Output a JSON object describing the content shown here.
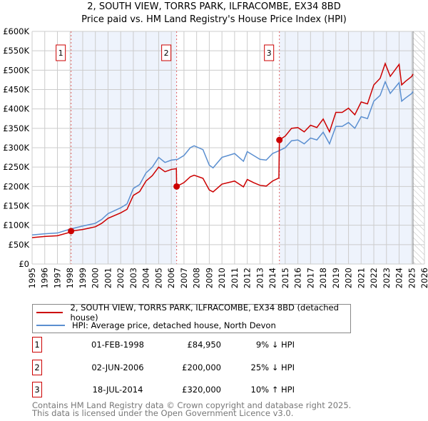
{
  "chart_data": {
    "type": "line",
    "title": "2, SOUTH VIEW, TORRS PARK, ILFRACOMBE, EX34 8BD",
    "subtitle": "Price paid vs. HM Land Registry's House Price Index (HPI)",
    "xlim": [
      1995,
      2026
    ],
    "ylim": [
      0,
      600000
    ],
    "y_ticks": [
      {
        "v": 0,
        "label": "£0"
      },
      {
        "v": 50000,
        "label": "£50K"
      },
      {
        "v": 100000,
        "label": "£100K"
      },
      {
        "v": 150000,
        "label": "£150K"
      },
      {
        "v": 200000,
        "label": "£200K"
      },
      {
        "v": 250000,
        "label": "£250K"
      },
      {
        "v": 300000,
        "label": "£300K"
      },
      {
        "v": 350000,
        "label": "£350K"
      },
      {
        "v": 400000,
        "label": "£400K"
      },
      {
        "v": 450000,
        "label": "£450K"
      },
      {
        "v": 500000,
        "label": "£500K"
      },
      {
        "v": 550000,
        "label": "£550K"
      },
      {
        "v": 600000,
        "label": "£600K"
      }
    ],
    "x_ticks": [
      "1995",
      "1996",
      "1997",
      "1998",
      "1999",
      "2000",
      "2001",
      "2002",
      "2003",
      "2004",
      "2005",
      "2006",
      "2007",
      "2008",
      "2009",
      "2010",
      "2011",
      "2012",
      "2013",
      "2014",
      "2015",
      "2016",
      "2017",
      "2018",
      "2019",
      "2020",
      "2021",
      "2022",
      "2023",
      "2024",
      "2025",
      "2026"
    ],
    "grid": true,
    "forecast_start": 2025.1,
    "series": [
      {
        "name": "2, SOUTH VIEW, TORRS PARK, ILFRACOMBE, EX34 8BD (detached house)",
        "color": "#cc0000",
        "x": [
          1995,
          1996,
          1997,
          1998,
          1998.08,
          1999,
          2000,
          2000.5,
          2001,
          2002,
          2002.5,
          2003,
          2003.5,
          2004,
          2004.5,
          2005,
          2005.5,
          2006,
          2006.4,
          2006.42,
          2007,
          2007.5,
          2007.8,
          2008.5,
          2009,
          2009.3,
          2010,
          2010.5,
          2011,
          2011.7,
          2012,
          2012.5,
          2013,
          2013.5,
          2014,
          2014.5,
          2014.54,
          2015,
          2015.5,
          2016,
          2016.5,
          2017,
          2017.5,
          2018,
          2018.5,
          2019,
          2019.5,
          2020,
          2020.5,
          2021,
          2021.5,
          2022,
          2022.5,
          2022.9,
          2023.3,
          2024,
          2024.2,
          2024.5,
          2025,
          2025.1
        ],
        "y": [
          68000,
          71000,
          73000,
          82000,
          84950,
          89000,
          96000,
          105000,
          118000,
          132000,
          141000,
          177000,
          187000,
          214000,
          228000,
          250000,
          238000,
          244000,
          246000,
          200000,
          210000,
          225000,
          229000,
          221000,
          191000,
          186000,
          206000,
          210000,
          214000,
          199000,
          218000,
          210000,
          203000,
          201000,
          214000,
          222000,
          320000,
          330000,
          350000,
          352000,
          341000,
          358000,
          352000,
          374000,
          341000,
          391000,
          391000,
          402000,
          385000,
          418000,
          413000,
          462000,
          479000,
          517000,
          484000,
          515000,
          462000,
          471000,
          484000,
          490000
        ]
      },
      {
        "name": "HPI: Average price, detached house, North Devon",
        "color": "#5b8fd0",
        "x": [
          1995,
          1996,
          1997,
          1998,
          1999,
          2000,
          2000.5,
          2001,
          2002,
          2002.5,
          2003,
          2003.5,
          2004,
          2004.5,
          2005,
          2005.5,
          2006,
          2006.5,
          2007,
          2007.5,
          2007.8,
          2008.5,
          2009,
          2009.3,
          2010,
          2010.5,
          2011,
          2011.7,
          2012,
          2012.5,
          2013,
          2013.5,
          2014,
          2014.5,
          2015,
          2015.5,
          2016,
          2016.5,
          2017,
          2017.5,
          2018,
          2018.5,
          2019,
          2019.5,
          2020,
          2020.5,
          2021,
          2021.5,
          2022,
          2022.5,
          2022.9,
          2023.3,
          2024,
          2024.2,
          2024.5,
          2025,
          2025.1
        ],
        "y": [
          75000,
          78000,
          80000,
          90000,
          98000,
          105000,
          115000,
          130000,
          145000,
          155000,
          195000,
          205000,
          235000,
          250000,
          275000,
          262000,
          268000,
          270000,
          280000,
          300000,
          305000,
          295000,
          255000,
          248000,
          275000,
          280000,
          285000,
          265000,
          290000,
          280000,
          270000,
          268000,
          285000,
          292000,
          300000,
          318000,
          320000,
          310000,
          325000,
          320000,
          340000,
          310000,
          355000,
          355000,
          365000,
          350000,
          380000,
          375000,
          420000,
          435000,
          470000,
          440000,
          468000,
          420000,
          428000,
          440000,
          445000
        ]
      }
    ],
    "sales": [
      {
        "n": "1",
        "x": 1998.08,
        "y": 84950,
        "date": "01-FEB-1998",
        "price": "£84,950",
        "hpi": "9% ↓ HPI"
      },
      {
        "n": "2",
        "x": 2006.42,
        "y": 200000,
        "date": "02-JUN-2006",
        "price": "£200,000",
        "hpi": "25% ↓ HPI"
      },
      {
        "n": "3",
        "x": 2014.54,
        "y": 320000,
        "date": "18-JUL-2014",
        "price": "£320,000",
        "hpi": "10% ↑ HPI"
      }
    ]
  },
  "footer": {
    "line1": "Contains HM Land Registry data © Crown copyright and database right 2025.",
    "line2": "This data is licensed under the Open Government Licence v3.0."
  }
}
